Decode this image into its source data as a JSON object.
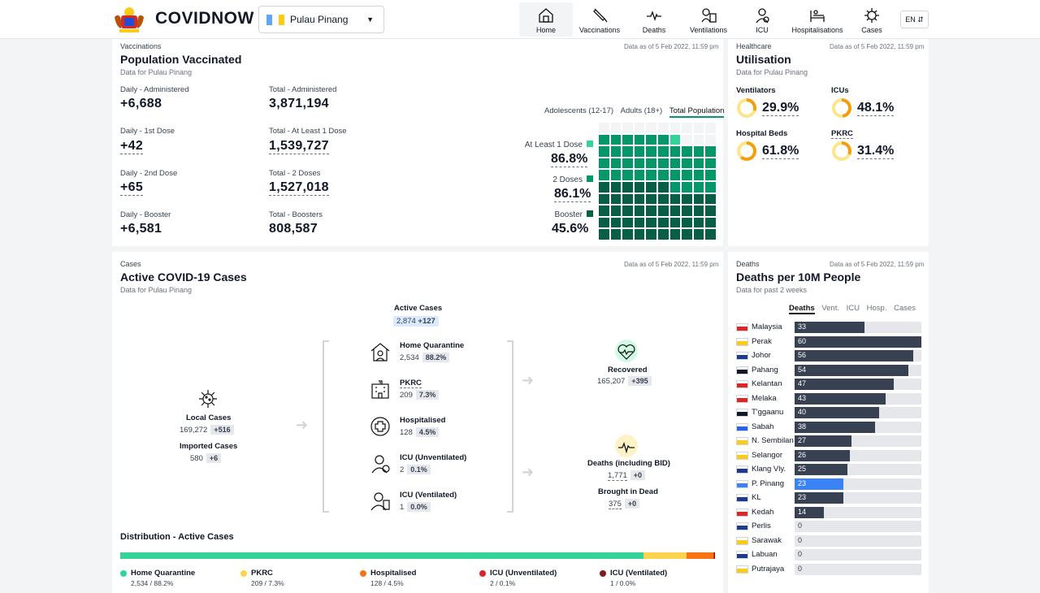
{
  "header": {
    "brand": "COVIDNOW",
    "state": "Pulau Pinang",
    "lang": "EN",
    "nav": [
      {
        "label": "Home",
        "icon": "home-icon"
      },
      {
        "label": "Vaccinations",
        "icon": "syringe-icon"
      },
      {
        "label": "Deaths",
        "icon": "heartbeat-line-icon"
      },
      {
        "label": "Ventilations",
        "icon": "ventilator-icon"
      },
      {
        "label": "ICU",
        "icon": "icu-icon"
      },
      {
        "label": "Hospitalisations",
        "icon": "hospital-bed-icon"
      },
      {
        "label": "Cases",
        "icon": "virus-icon"
      }
    ]
  },
  "vaccination": {
    "kicker": "Vaccinations",
    "title": "Population Vaccinated",
    "subtitle": "Data for Pulau Pinang",
    "asof": "Data as of 5 Feb 2022, 11:59 pm",
    "stats": [
      {
        "daily_label": "Daily - Administered",
        "daily": "+6,688",
        "total_label": "Total - Administered",
        "total": "3,871,194"
      },
      {
        "daily_label": "Daily - 1st Dose",
        "daily": "+42",
        "total_label": "Total - At Least 1 Dose",
        "total": "1,539,727"
      },
      {
        "daily_label": "Daily - 2nd Dose",
        "daily": "+65",
        "total_label": "Total - 2 Doses",
        "total": "1,527,018"
      },
      {
        "daily_label": "Daily - Booster",
        "daily": "+6,581",
        "total_label": "Total - Boosters",
        "total": "808,587"
      }
    ],
    "tabs": [
      "Adolescents (12-17)",
      "Adults (18+)",
      "Total Population"
    ],
    "waffle": [
      {
        "label": "At Least 1 Dose",
        "value": "86.8%",
        "pct": 86.8,
        "color": "#34d399"
      },
      {
        "label": "2 Doses",
        "value": "86.1%",
        "pct": 86.1,
        "color": "#059669"
      },
      {
        "label": "Booster",
        "value": "45.6%",
        "pct": 45.6,
        "color": "#065f46"
      }
    ]
  },
  "healthcare": {
    "kicker": "Healthcare",
    "title": "Utilisation",
    "subtitle": "Data for Pulau Pinang",
    "asof": "Data as of 5 Feb 2022, 11:59 pm",
    "items": [
      {
        "label": "Ventilators",
        "value": "29.9%",
        "pct": 29.9
      },
      {
        "label": "ICUs",
        "value": "48.1%",
        "pct": 48.1
      },
      {
        "label": "Hospital Beds",
        "value": "61.8%",
        "pct": 61.8
      },
      {
        "label": "PKRC",
        "value": "31.4%",
        "pct": 31.4
      }
    ]
  },
  "cases": {
    "kicker": "Cases",
    "title": "Active COVID-19 Cases",
    "subtitle": "Data for Pulau Pinang",
    "asof": "Data as of 5 Feb 2022, 11:59 pm",
    "active": {
      "label": "Active Cases",
      "value": "2,874",
      "delta": "+127"
    },
    "local": {
      "label": "Local Cases",
      "value": "169,272",
      "delta": "+516"
    },
    "imported": {
      "label": "Imported Cases",
      "value": "580",
      "delta": "+6"
    },
    "flow": [
      {
        "label": "Home Quarantine",
        "value": "2,534",
        "pct": "88.2%"
      },
      {
        "label": "PKRC",
        "value": "209",
        "pct": "7.3%"
      },
      {
        "label": "Hospitalised",
        "value": "128",
        "pct": "4.5%"
      },
      {
        "label": "ICU (Unventilated)",
        "value": "2",
        "pct": "0.1%"
      },
      {
        "label": "ICU (Ventilated)",
        "value": "1",
        "pct": "0.0%"
      }
    ],
    "recovered": {
      "label": "Recovered",
      "value": "165,207",
      "delta": "+395"
    },
    "deaths": {
      "label": "Deaths (including BID)",
      "value": "1,771",
      "delta": "+0"
    },
    "bid": {
      "label": "Brought in Dead",
      "value": "375",
      "delta": "+0"
    },
    "distribution": {
      "title": "Distribution - Active Cases",
      "items": [
        {
          "label": "Home Quarantine",
          "value": "2,534 / 88.2%",
          "pct": 88.2,
          "color": "#34d399"
        },
        {
          "label": "PKRC",
          "value": "209 / 7.3%",
          "pct": 7.3,
          "color": "#fcd34d"
        },
        {
          "label": "Hospitalised",
          "value": "128 / 4.5%",
          "pct": 4.5,
          "color": "#f97316"
        },
        {
          "label": "ICU (Unventilated)",
          "value": "2 / 0.1%",
          "pct": 0.1,
          "color": "#dc2626"
        },
        {
          "label": "ICU (Ventilated)",
          "value": "1 / 0.0%",
          "pct": 0.05,
          "color": "#7f1d1d"
        }
      ]
    }
  },
  "deaths": {
    "kicker": "Deaths",
    "title": "Deaths per 10M People",
    "subtitle": "Data for past 2 weeks",
    "asof": "Data as of 5 Feb 2022, 11:59 pm",
    "tabs": [
      "Deaths",
      "Vent.",
      "ICU",
      "Hosp.",
      "Cases"
    ],
    "max": 60,
    "highlight": "#3b82f6",
    "rows": [
      {
        "name": "Malaysia",
        "value": 33
      },
      {
        "name": "Perak",
        "value": 60
      },
      {
        "name": "Johor",
        "value": 56
      },
      {
        "name": "Pahang",
        "value": 54
      },
      {
        "name": "Kelantan",
        "value": 47
      },
      {
        "name": "Melaka",
        "value": 43
      },
      {
        "name": "T'ggaanu",
        "value": 40
      },
      {
        "name": "Sabah",
        "value": 38
      },
      {
        "name": "N. Sembilan",
        "value": 27
      },
      {
        "name": "Selangor",
        "value": 26
      },
      {
        "name": "Klang Vly.",
        "value": 25
      },
      {
        "name": "P. Pinang",
        "value": 23
      },
      {
        "name": "KL",
        "value": 23
      },
      {
        "name": "Kedah",
        "value": 14
      },
      {
        "name": "Perlis",
        "value": 0
      },
      {
        "name": "Sarawak",
        "value": 0
      },
      {
        "name": "Labuan",
        "value": 0
      },
      {
        "name": "Putrajaya",
        "value": 0
      }
    ]
  }
}
